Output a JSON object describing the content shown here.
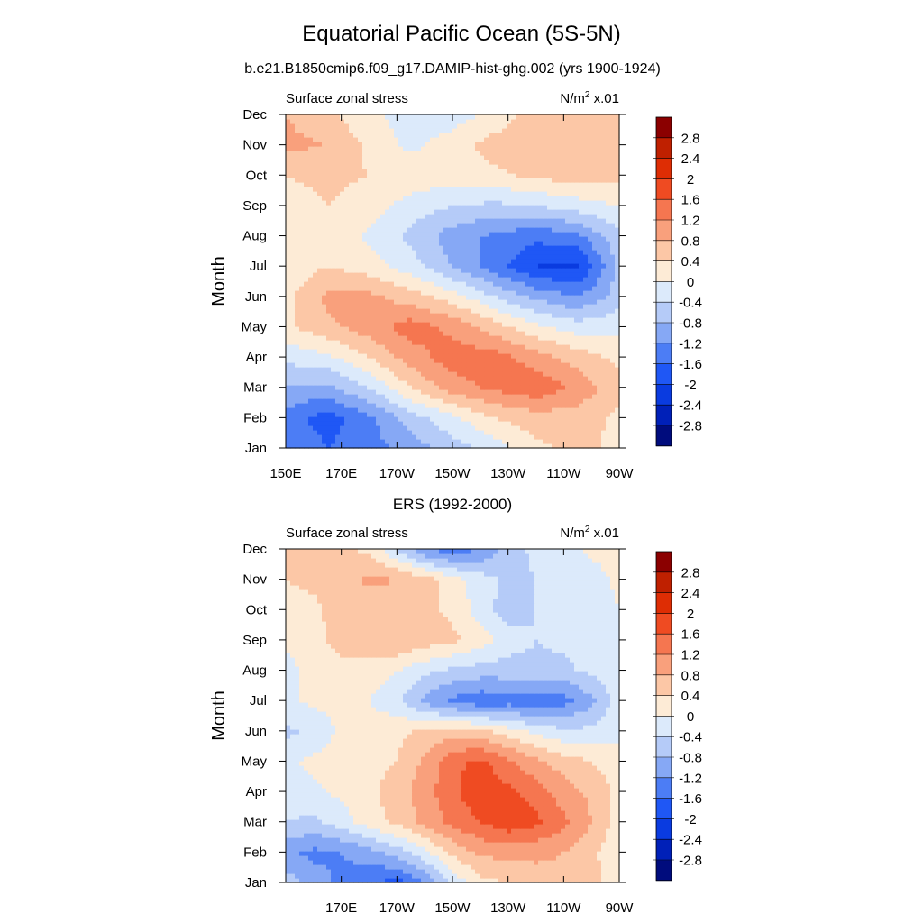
{
  "figure": {
    "title": "Equatorial Pacific Ocean (5S-5N)",
    "subtitle": "b.e21.B1850cmip6.f09_g17.DAMIP-hist-ghg.002 (yrs 1900-1924)"
  },
  "colorbar": {
    "levels": [
      -2.8,
      -2.4,
      -2,
      -1.6,
      -1.2,
      -0.8,
      -0.4,
      0,
      0.4,
      0.8,
      1.2,
      1.6,
      2,
      2.4,
      2.8
    ],
    "labels": [
      "-2.8",
      "-2.4",
      "-2",
      "-1.6",
      "-1.2",
      "-0.8",
      "-0.4",
      "0",
      "0.4",
      "0.8",
      "1.2",
      "1.6",
      "2",
      "2.4",
      "2.8"
    ],
    "colors": [
      "#000c7d",
      "#0020b8",
      "#0a3be0",
      "#1f57f5",
      "#4c7df5",
      "#86a8f5",
      "#b5cbf8",
      "#dceafb",
      "#fdebd6",
      "#fcc7a6",
      "#f9a07c",
      "#f57650",
      "#ef4b22",
      "#de2d04",
      "#bf2000",
      "#8b0000"
    ]
  },
  "chart_data": [
    {
      "type": "heatmap",
      "subtitle_left": "Surface zonal stress",
      "units": "N/m",
      "units_sup": "2",
      "units_scale": " x.01",
      "ylabel": "Month",
      "xlabel": "",
      "x_ticks": [
        150,
        170,
        190,
        210,
        230,
        250,
        270
      ],
      "x_tick_labels": [
        "150E",
        "170E",
        "170W",
        "150W",
        "130W",
        "110W",
        "90W"
      ],
      "xlim": [
        150,
        270
      ],
      "y_ticks": [
        "Jan",
        "Feb",
        "Mar",
        "Apr",
        "May",
        "Jun",
        "Jul",
        "Aug",
        "Sep",
        "Oct",
        "Nov",
        "Dec"
      ],
      "ylim": [
        1,
        12
      ],
      "grid_x": [
        150,
        165,
        180,
        195,
        210,
        225,
        240,
        255,
        270
      ],
      "grid_y": [
        1,
        2,
        3,
        4,
        5,
        6,
        7,
        8,
        9,
        10,
        11,
        12
      ],
      "z": [
        [
          -1.2,
          -1.6,
          -1.4,
          -1.0,
          -0.6,
          -0.2,
          0.3,
          0.5,
          0.3
        ],
        [
          -1.4,
          -1.8,
          -1.3,
          -0.6,
          -0.1,
          0.4,
          0.6,
          0.6,
          0.3
        ],
        [
          -0.8,
          -0.9,
          -0.4,
          0.4,
          1.0,
          1.3,
          1.5,
          1.1,
          0.5
        ],
        [
          -0.3,
          -0.1,
          0.4,
          1.0,
          1.4,
          1.4,
          1.0,
          0.6,
          0.3
        ],
        [
          0.3,
          0.7,
          1.0,
          1.4,
          1.1,
          0.6,
          0.1,
          -0.2,
          -0.1
        ],
        [
          0.3,
          0.9,
          0.9,
          0.6,
          0.2,
          -0.4,
          -0.9,
          -1.2,
          -0.6
        ],
        [
          0.1,
          0.4,
          0.2,
          -0.2,
          -0.8,
          -1.4,
          -2.0,
          -2.1,
          -0.7
        ],
        [
          0.1,
          0.3,
          -0.1,
          -0.5,
          -1.0,
          -1.3,
          -1.5,
          -1.3,
          -0.5
        ],
        [
          0.2,
          0.4,
          0.2,
          -0.2,
          -0.4,
          -0.5,
          -0.4,
          -0.2,
          0.0
        ],
        [
          0.4,
          0.5,
          0.4,
          0.3,
          0.2,
          0.3,
          0.5,
          0.6,
          0.5
        ],
        [
          0.9,
          0.8,
          0.3,
          -0.1,
          0.2,
          0.6,
          0.7,
          0.7,
          0.6
        ],
        [
          0.8,
          0.5,
          0.1,
          -0.2,
          -0.2,
          0.1,
          0.6,
          0.7,
          0.6
        ]
      ]
    },
    {
      "type": "heatmap",
      "title": "ERS (1992-2000)",
      "subtitle_left": "Surface zonal stress",
      "units": "N/m",
      "units_sup": "2",
      "units_scale": " x.01",
      "ylabel": "Month",
      "xlabel": "",
      "x_ticks": [
        170,
        190,
        210,
        230,
        250,
        270
      ],
      "x_tick_labels": [
        "170E",
        "170W",
        "150W",
        "130W",
        "110W",
        "90W"
      ],
      "xlim": [
        150,
        270
      ],
      "y_ticks": [
        "Jan",
        "Feb",
        "Mar",
        "Apr",
        "May",
        "Jun",
        "Jul",
        "Aug",
        "Sep",
        "Oct",
        "Nov",
        "Dec"
      ],
      "ylim": [
        1,
        12
      ],
      "grid_x": [
        150,
        160,
        170,
        180,
        190,
        200,
        210,
        220,
        230,
        240,
        250,
        260,
        270
      ],
      "grid_y": [
        1,
        2,
        3,
        4,
        5,
        6,
        7,
        8,
        9,
        10,
        11,
        12
      ],
      "z": [
        [
          -0.6,
          -1.0,
          -1.3,
          -1.5,
          -1.8,
          -1.2,
          -0.3,
          0.3,
          0.4,
          0.6,
          0.7,
          0.5,
          0.2
        ],
        [
          -1.1,
          -1.3,
          -1.2,
          -1.0,
          -0.6,
          -0.1,
          0.5,
          0.9,
          0.9,
          0.9,
          0.8,
          0.5,
          0.1
        ],
        [
          -0.4,
          -0.5,
          -0.2,
          0.2,
          0.5,
          0.9,
          1.3,
          1.6,
          1.9,
          1.7,
          1.3,
          0.8,
          0.2
        ],
        [
          -0.2,
          -0.1,
          0.1,
          0.3,
          0.6,
          1.0,
          1.5,
          1.9,
          1.7,
          1.4,
          1.0,
          0.7,
          0.3
        ],
        [
          -0.1,
          0.1,
          0.2,
          0.3,
          0.4,
          0.9,
          1.5,
          1.7,
          1.3,
          0.9,
          0.6,
          0.4,
          0.2
        ],
        [
          -0.5,
          -0.3,
          0.1,
          0.2,
          0.3,
          0.5,
          0.6,
          0.5,
          0.2,
          -0.1,
          -0.3,
          -0.3,
          -0.1
        ],
        [
          -0.1,
          0.1,
          0.1,
          0.0,
          -0.3,
          -0.9,
          -1.3,
          -1.5,
          -1.4,
          -1.5,
          -1.4,
          -0.9,
          -0.2
        ],
        [
          -0.2,
          0.2,
          0.3,
          0.2,
          0.0,
          -0.3,
          -0.5,
          -0.6,
          -0.6,
          -0.5,
          -0.5,
          -0.3,
          -0.1
        ],
        [
          0.1,
          0.3,
          0.5,
          0.7,
          0.8,
          0.6,
          0.5,
          0.2,
          -0.2,
          -0.4,
          -0.3,
          -0.2,
          0.0
        ],
        [
          0.2,
          0.3,
          0.6,
          0.5,
          0.6,
          0.5,
          0.3,
          -0.2,
          -0.6,
          -0.4,
          -0.3,
          -0.2,
          0.0
        ],
        [
          0.4,
          0.5,
          0.6,
          0.9,
          0.8,
          0.6,
          0.2,
          -0.2,
          -0.5,
          -0.4,
          -0.3,
          -0.2,
          0.1
        ],
        [
          0.4,
          0.6,
          0.5,
          0.3,
          -0.4,
          -1.2,
          -1.5,
          -1.2,
          -0.6,
          -0.3,
          -0.2,
          0.1,
          0.2
        ]
      ]
    }
  ]
}
